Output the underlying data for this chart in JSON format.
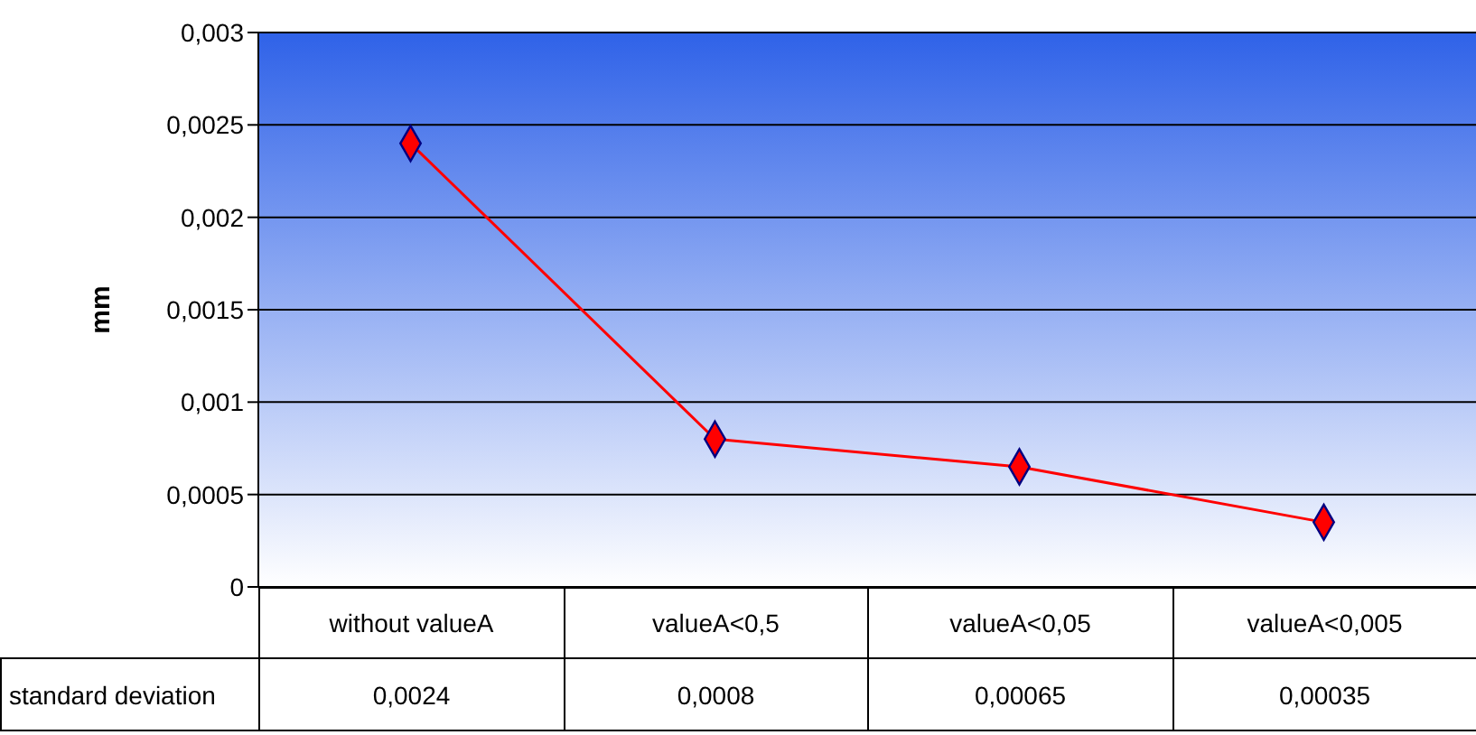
{
  "chart_data": {
    "type": "line",
    "ylabel": "mm",
    "categories": [
      "without valueA",
      "valueA<0,5",
      "valueA<0,05",
      "valueA<0,005"
    ],
    "series": [
      {
        "name": "standard deviation",
        "color": "#ff0000",
        "values": [
          0.0024,
          0.0008,
          0.00065,
          0.00035
        ],
        "value_labels": [
          "0,0024",
          "0,0008",
          "0,00065",
          "0,00035"
        ]
      }
    ],
    "ylim": [
      0,
      0.003
    ],
    "yticks": [
      {
        "value": 0,
        "label": "0"
      },
      {
        "value": 0.0005,
        "label": "0,0005"
      },
      {
        "value": 0.001,
        "label": "0,001"
      },
      {
        "value": 0.0015,
        "label": "0,0015"
      },
      {
        "value": 0.002,
        "label": "0,002"
      },
      {
        "value": 0.0025,
        "label": "0,0025"
      },
      {
        "value": 0.003,
        "label": "0,003"
      }
    ],
    "grid": "y",
    "marker": "diamond",
    "line_style": "solid",
    "legend": false
  }
}
